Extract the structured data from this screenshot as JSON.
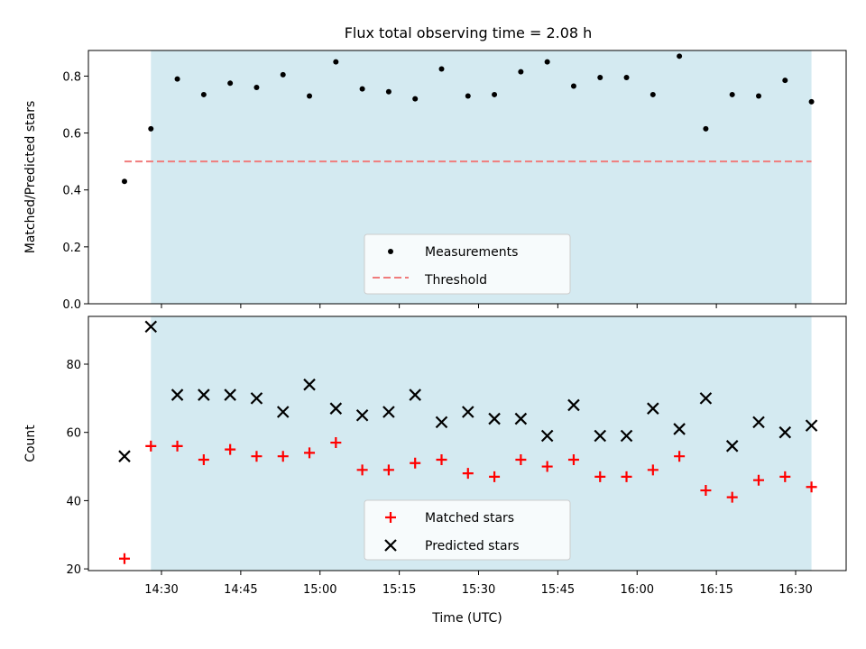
{
  "title": "Flux total observing time = 2.08 h",
  "chart_data": [
    {
      "type": "scatter",
      "ylabel": "Matched/Predicted stars",
      "ylim": [
        0.0,
        0.89
      ],
      "yticks": [
        "0.0",
        "0.2",
        "0.4",
        "0.6",
        "0.8"
      ],
      "shaded_interval": [
        "14:28",
        "16:33"
      ],
      "shade_color": "#d4eaf1",
      "x": [
        "14:23",
        "14:28",
        "14:33",
        "14:38",
        "14:43",
        "14:48",
        "14:53",
        "14:58",
        "15:03",
        "15:08",
        "15:13",
        "15:18",
        "15:23",
        "15:28",
        "15:33",
        "15:38",
        "15:43",
        "15:48",
        "15:53",
        "15:58",
        "16:03",
        "16:08",
        "16:13",
        "16:18",
        "16:23",
        "16:28",
        "16:33"
      ],
      "series": [
        {
          "name": "Measurements",
          "marker": "dot",
          "color": "#000000",
          "values": [
            0.43,
            0.615,
            0.79,
            0.735,
            0.775,
            0.76,
            0.805,
            0.73,
            0.85,
            0.755,
            0.745,
            0.72,
            0.825,
            0.73,
            0.735,
            0.815,
            0.85,
            0.765,
            0.795,
            0.795,
            0.735,
            0.87,
            0.615,
            0.735,
            0.73,
            0.785,
            0.71
          ]
        },
        {
          "name": "Threshold",
          "marker": "dashed-line",
          "color": "#f07c7c",
          "x": [
            "14:23",
            "16:33"
          ],
          "values": [
            0.5,
            0.5
          ]
        }
      ],
      "legend": "lower-center"
    },
    {
      "type": "scatter",
      "xlabel": "Time (UTC)",
      "ylabel": "Count",
      "ylim": [
        19.5,
        94
      ],
      "yticks": [
        "20",
        "40",
        "60",
        "80"
      ],
      "xticks": [
        "14:30",
        "14:45",
        "15:00",
        "15:15",
        "15:30",
        "15:45",
        "16:00",
        "16:15",
        "16:30"
      ],
      "shaded_interval": [
        "14:28",
        "16:33"
      ],
      "shade_color": "#d4eaf1",
      "x": [
        "14:23",
        "14:28",
        "14:33",
        "14:38",
        "14:43",
        "14:48",
        "14:53",
        "14:58",
        "15:03",
        "15:08",
        "15:13",
        "15:18",
        "15:23",
        "15:28",
        "15:33",
        "15:38",
        "15:43",
        "15:48",
        "15:53",
        "15:58",
        "16:03",
        "16:08",
        "16:13",
        "16:18",
        "16:23",
        "16:28",
        "16:33"
      ],
      "series": [
        {
          "name": "Matched stars",
          "marker": "plus",
          "color": "#ff0000",
          "values": [
            23,
            56,
            56,
            52,
            55,
            53,
            53,
            54,
            57,
            49,
            49,
            51,
            52,
            48,
            47,
            52,
            50,
            52,
            47,
            47,
            49,
            53,
            43,
            41,
            46,
            47,
            44
          ]
        },
        {
          "name": "Predicted stars",
          "marker": "x",
          "color": "#000000",
          "values": [
            53,
            91,
            71,
            71,
            71,
            70,
            66,
            74,
            67,
            65,
            66,
            71,
            63,
            66,
            64,
            64,
            59,
            68,
            59,
            59,
            67,
            61,
            70,
            56,
            63,
            60,
            62
          ]
        }
      ],
      "legend": "lower-center"
    }
  ]
}
